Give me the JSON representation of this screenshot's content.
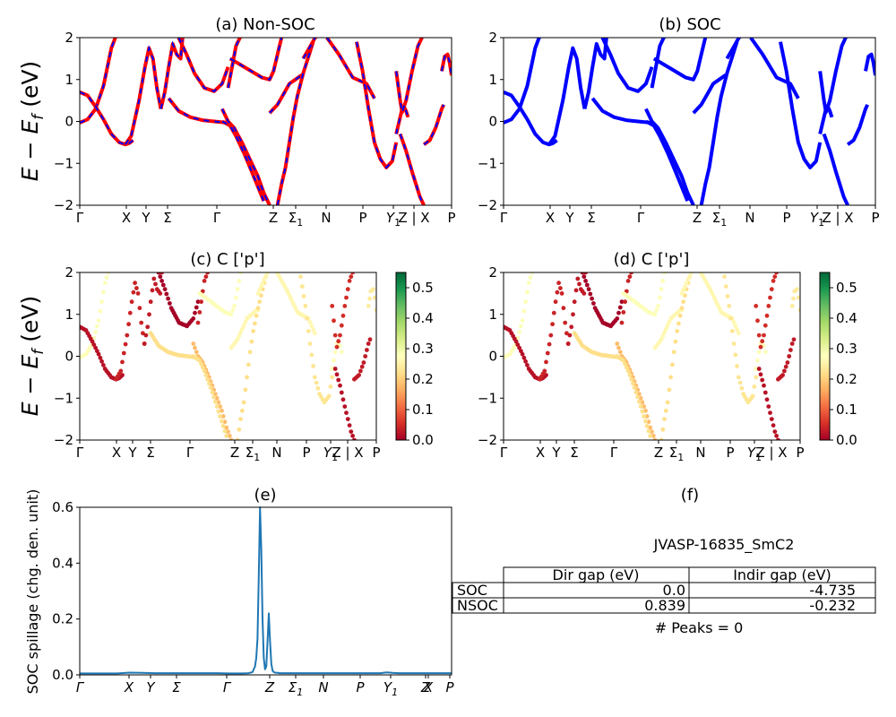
{
  "figure": {
    "material": "JVASP-16835_SmC2",
    "peaks_text": "# Peaks = 0",
    "ylabel_band": "E − E_f (eV)",
    "ylabel_spill": "SOC spillage (chg. den. unit)",
    "colors": {
      "nonsoc_red": "#ff0000",
      "soc_blue": "#0000ff",
      "spillage_line": "#1f77b4"
    }
  },
  "chart_data": [
    {
      "id": "a",
      "type": "line",
      "title": "(a) Non-SOC",
      "ylim": [
        -2,
        2
      ],
      "yticks": [
        -2,
        -1,
        0,
        1,
        2
      ],
      "kpath": [
        "Γ",
        "X",
        "Y",
        "Σ",
        "Γ",
        "Z",
        "Σ1",
        "N",
        "P",
        "Y1",
        "Z | X",
        "P"
      ],
      "style": "red line with blue dashes",
      "series": [
        {
          "x": [
            0,
            4,
            8,
            12,
            14,
            16,
            18,
            20
          ],
          "y": [
            -0.03,
            0.05,
            0.3,
            0.85,
            1.3,
            1.75,
            2.0,
            2.1
          ]
        },
        {
          "x": [
            0,
            4,
            8,
            12,
            16,
            20,
            23,
            25,
            27
          ],
          "y": [
            0.7,
            0.62,
            0.35,
            0.05,
            -0.3,
            -0.5,
            -0.55,
            -0.52,
            -0.45
          ]
        },
        {
          "x": [
            23,
            26,
            30,
            33,
            35,
            37,
            39,
            41
          ],
          "y": [
            -0.55,
            -0.35,
            0.5,
            1.3,
            1.75,
            1.5,
            0.8,
            0.3
          ]
        },
        {
          "x": [
            41,
            43,
            45,
            47,
            49,
            51,
            52
          ],
          "y": [
            0.3,
            0.7,
            1.3,
            1.85,
            1.6,
            1.5,
            2.0
          ]
        },
        {
          "x": [
            45,
            50,
            56,
            62,
            68,
            72,
            75,
            76
          ],
          "y": [
            0.55,
            0.25,
            0.1,
            0.03,
            0.0,
            -0.02,
            -0.03,
            -0.05
          ]
        },
        {
          "x": [
            50,
            54,
            58,
            63,
            68,
            72,
            75
          ],
          "y": [
            2.0,
            1.6,
            1.15,
            0.8,
            0.72,
            0.9,
            1.3
          ]
        },
        {
          "x": [
            75,
            77,
            79,
            81,
            83
          ],
          "y": [
            0.8,
            1.3,
            1.8,
            2.0,
            2.1
          ]
        },
        {
          "x": [
            72,
            75,
            78,
            82,
            86,
            90,
            93,
            96
          ],
          "y": [
            0.3,
            0.0,
            -0.15,
            -0.5,
            -0.9,
            -1.3,
            -1.7,
            -2.0
          ]
        },
        {
          "x": [
            72,
            74,
            76,
            79,
            83,
            87,
            90,
            93
          ],
          "y": [
            0.0,
            -0.05,
            -0.1,
            -0.35,
            -0.75,
            -1.2,
            -1.55,
            -1.9
          ]
        },
        {
          "x": [
            96,
            100,
            103,
            106,
            109,
            112,
            113
          ],
          "y": [
            0.2,
            0.4,
            0.65,
            0.9,
            1.0,
            1.1,
            1.1
          ]
        },
        {
          "x": [
            76,
            85,
            92,
            96,
            98,
            100,
            102
          ],
          "y": [
            1.5,
            1.25,
            1.05,
            1.0,
            1.2,
            1.6,
            2.0
          ]
        },
        {
          "x": [
            100,
            102,
            104,
            106,
            108,
            110,
            113,
            116,
            118
          ],
          "y": [
            -2.0,
            -1.5,
            -1.1,
            -0.5,
            0.1,
            0.6,
            1.15,
            1.6,
            1.9
          ]
        },
        {
          "x": [
            113,
            116,
            119,
            122
          ],
          "y": [
            1.5,
            1.75,
            2.0,
            2.1
          ]
        },
        {
          "x": [
            125,
            131,
            138,
            145,
            149
          ],
          "y": [
            2.0,
            1.6,
            1.05,
            0.9,
            0.55
          ]
        },
        {
          "x": [
            140,
            143,
            146,
            149,
            152,
            155,
            158,
            160
          ],
          "y": [
            1.9,
            1.2,
            0.3,
            -0.5,
            -0.9,
            -1.1,
            -0.95,
            -0.5
          ]
        },
        {
          "x": [
            160,
            162,
            163,
            164,
            165,
            166
          ],
          "y": [
            -0.3,
            0.1,
            0.3,
            0.35,
            0.25,
            0.1
          ]
        },
        {
          "x": [
            160,
            162,
            163,
            165,
            168,
            171,
            174
          ],
          "y": [
            1.2,
            0.5,
            0.22,
            0.5,
            1.2,
            1.8,
            2.1
          ]
        },
        {
          "x": [
            162,
            165,
            168,
            170,
            172,
            174
          ],
          "y": [
            -0.3,
            -0.7,
            -1.2,
            -1.5,
            -1.8,
            -2.0
          ]
        },
        {
          "x": [
            174,
            177,
            180,
            183,
            184
          ],
          "y": [
            -0.55,
            -0.45,
            -0.15,
            0.3,
            0.4
          ]
        },
        {
          "x": [
            183,
            184.5,
            186,
            187,
            188
          ],
          "y": [
            1.2,
            1.55,
            1.6,
            1.4,
            1.1
          ]
        }
      ]
    },
    {
      "id": "b",
      "type": "line",
      "title": "(b) SOC",
      "ylim": [
        -2,
        2
      ],
      "yticks": [
        -2,
        -1,
        0,
        1,
        2
      ],
      "kpath": [
        "Γ",
        "X",
        "Y",
        "Σ",
        "Γ",
        "Z",
        "Σ1",
        "N",
        "P",
        "Y1",
        "Z | X",
        "P"
      ],
      "style": "blue",
      "series_ref": "a"
    },
    {
      "id": "c",
      "type": "scatter",
      "title": "(c)  C ['p']",
      "ylim": [
        -2,
        2
      ],
      "yticks": [
        -2,
        -1,
        0,
        1,
        2
      ],
      "kpath": [
        "Γ",
        "X",
        "Y",
        "Σ",
        "Γ",
        "Z",
        "Σ1",
        "N",
        "P",
        "Y1",
        "Z | X",
        "P"
      ],
      "colorbar": {
        "cmap": "RdYlGn",
        "min": 0.0,
        "max": 0.55,
        "ticks": [
          0.0,
          0.1,
          0.2,
          0.3,
          0.4,
          0.5
        ]
      },
      "series_ref": "a",
      "series_weights": [
        0.28,
        0.02,
        0.04,
        0.03,
        0.22,
        0.0,
        0.04,
        0.18,
        0.22,
        0.26,
        0.28,
        0.22,
        0.26,
        0.26,
        0.23,
        0.28,
        0.05,
        0.02,
        0.03,
        0.24
      ]
    },
    {
      "id": "d",
      "type": "scatter",
      "title": "(d) C ['p']",
      "ylim": [
        -2,
        2
      ],
      "yticks": [
        -2,
        -1,
        0,
        1,
        2
      ],
      "kpath": [
        "Γ",
        "X",
        "Y",
        "Σ",
        "Γ",
        "Z",
        "Σ1",
        "N",
        "P",
        "Y1",
        "Z | X",
        "P"
      ],
      "colorbar": {
        "cmap": "RdYlGn",
        "min": 0.0,
        "max": 0.55,
        "ticks": [
          0.0,
          0.1,
          0.2,
          0.3,
          0.4,
          0.5
        ]
      },
      "series_ref": "a",
      "series_weights_ref": "c"
    },
    {
      "id": "e",
      "type": "line",
      "title": "(e)",
      "ylabel": "SOC spillage (chg. den. unit)",
      "ylim": [
        0,
        0.6
      ],
      "yticks": [
        0.0,
        0.2,
        0.4,
        0.6
      ],
      "kpath": [
        "Γ",
        "X",
        "Y",
        "Σ",
        "Γ",
        "Z",
        "Σ1",
        "N",
        "P",
        "Y1",
        "Z",
        "X",
        "P"
      ],
      "x": [
        0,
        10,
        20,
        30,
        40,
        50,
        60,
        70,
        80,
        90,
        100,
        110,
        120,
        130,
        135,
        138,
        140,
        141,
        142,
        143,
        144,
        145,
        146,
        147,
        148,
        149,
        150,
        151,
        152,
        153,
        154,
        155,
        156,
        158,
        160,
        170,
        180,
        190,
        200,
        210,
        220,
        230,
        240,
        245,
        250,
        255,
        260,
        270,
        280,
        290,
        297
      ],
      "y": [
        0.005,
        0.005,
        0.005,
        0.005,
        0.008,
        0.007,
        0.006,
        0.006,
        0.006,
        0.006,
        0.006,
        0.006,
        0.005,
        0.005,
        0.006,
        0.01,
        0.03,
        0.06,
        0.13,
        0.35,
        0.6,
        0.45,
        0.2,
        0.06,
        0.02,
        0.03,
        0.12,
        0.22,
        0.12,
        0.04,
        0.015,
        0.01,
        0.008,
        0.007,
        0.006,
        0.006,
        0.006,
        0.006,
        0.006,
        0.006,
        0.006,
        0.006,
        0.006,
        0.009,
        0.007,
        0.006,
        0.006,
        0.006,
        0.006,
        0.006,
        0.006
      ]
    }
  ],
  "table": {
    "headers": [
      "",
      "Dir gap (eV)",
      "Indir gap (eV)"
    ],
    "rows": [
      {
        "label": "SOC",
        "dir": "0.0",
        "indir": "-4.735"
      },
      {
        "label": "NSOC",
        "dir": "0.839",
        "indir": "-0.232"
      }
    ]
  },
  "panel_f": {
    "title": "(f)"
  }
}
